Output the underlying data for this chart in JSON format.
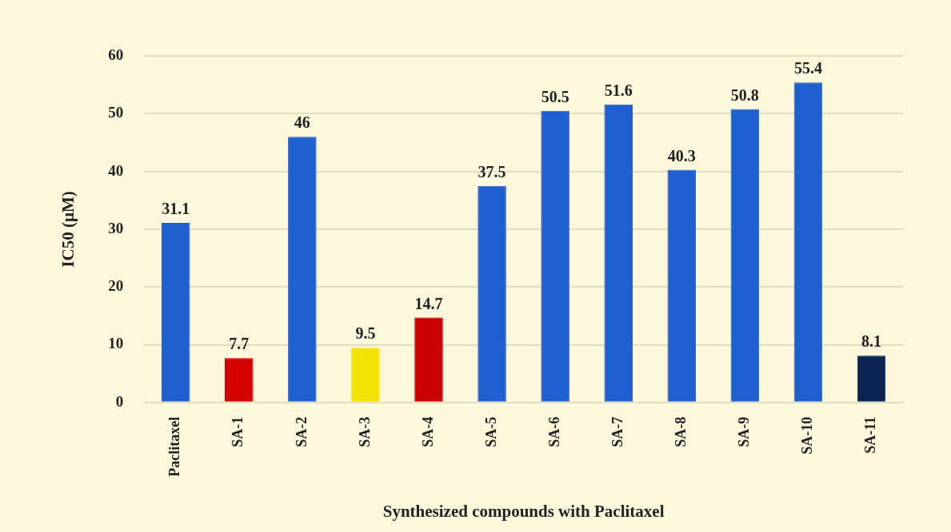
{
  "chart_data": {
    "type": "bar",
    "xlabel": "Synthesized compounds with Paclitaxel",
    "ylabel": "IC50 (µM)",
    "categories": [
      "Paclitaxel",
      "SA-1",
      "SA-2",
      "SA-3",
      "SA-4",
      "SA-5",
      "SA-6",
      "SA-7",
      "SA-8",
      "SA-9",
      "SA-10",
      "SA-11"
    ],
    "values": [
      31.1,
      7.7,
      46,
      9.5,
      14.7,
      37.5,
      50.5,
      51.6,
      40.3,
      50.8,
      55.4,
      8.1
    ],
    "colors": [
      "#1f5fcf",
      "#d40000",
      "#1f5fcf",
      "#f2e400",
      "#c80000",
      "#1f5fcf",
      "#1f5fcf",
      "#1f5fcf",
      "#1f5fcf",
      "#1f5fcf",
      "#1f5fcf",
      "#0a2350"
    ],
    "ylim": [
      0,
      60
    ],
    "yticks": [
      0,
      10,
      20,
      30,
      40,
      50,
      60
    ],
    "grid": "y",
    "legend": false,
    "data_labels": true
  }
}
